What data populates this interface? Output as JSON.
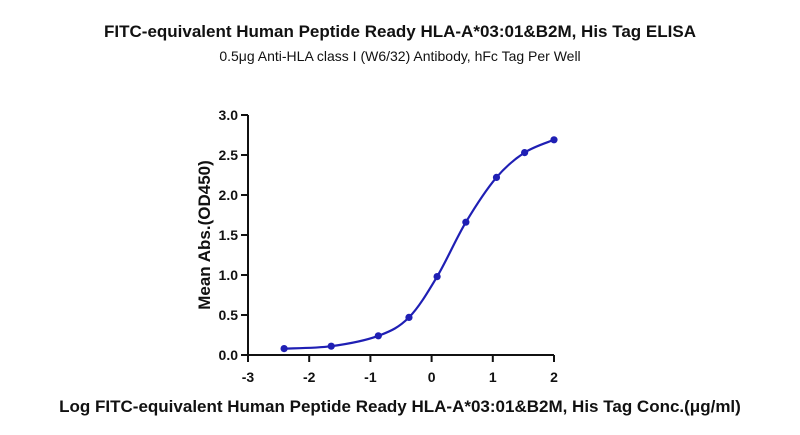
{
  "chart_data": {
    "type": "line",
    "title": "FITC-equivalent Human Peptide Ready HLA-A*03:01&B2M, His Tag ELISA",
    "subtitle": "0.5μg Anti-HLA class I (W6/32) Antibody, hFc Tag Per Well",
    "xlabel": "Log FITC-equivalent Human Peptide Ready HLA-A*03:01&B2M, His Tag Conc.(μg/ml)",
    "ylabel": "Mean Abs.(OD450)",
    "xlim": [
      -3,
      2
    ],
    "ylim": [
      0,
      3.0
    ],
    "xticks": [
      "-3",
      "-2",
      "-1",
      "0",
      "1",
      "2"
    ],
    "yticks": [
      "0.0",
      "0.5",
      "1.0",
      "1.5",
      "2.0",
      "2.5",
      "3.0"
    ],
    "grid": false,
    "series": [
      {
        "color": "#1f1fb4",
        "marker": "circle",
        "fit": "4PL",
        "points": [
          {
            "x": -2.41,
            "y": 0.08
          },
          {
            "x": -1.64,
            "y": 0.11
          },
          {
            "x": -0.87,
            "y": 0.24
          },
          {
            "x": -0.37,
            "y": 0.47
          },
          {
            "x": 0.09,
            "y": 0.98
          },
          {
            "x": 0.56,
            "y": 1.66
          },
          {
            "x": 1.06,
            "y": 2.22
          },
          {
            "x": 1.52,
            "y": 2.53
          },
          {
            "x": 2.0,
            "y": 2.69
          }
        ]
      }
    ]
  }
}
